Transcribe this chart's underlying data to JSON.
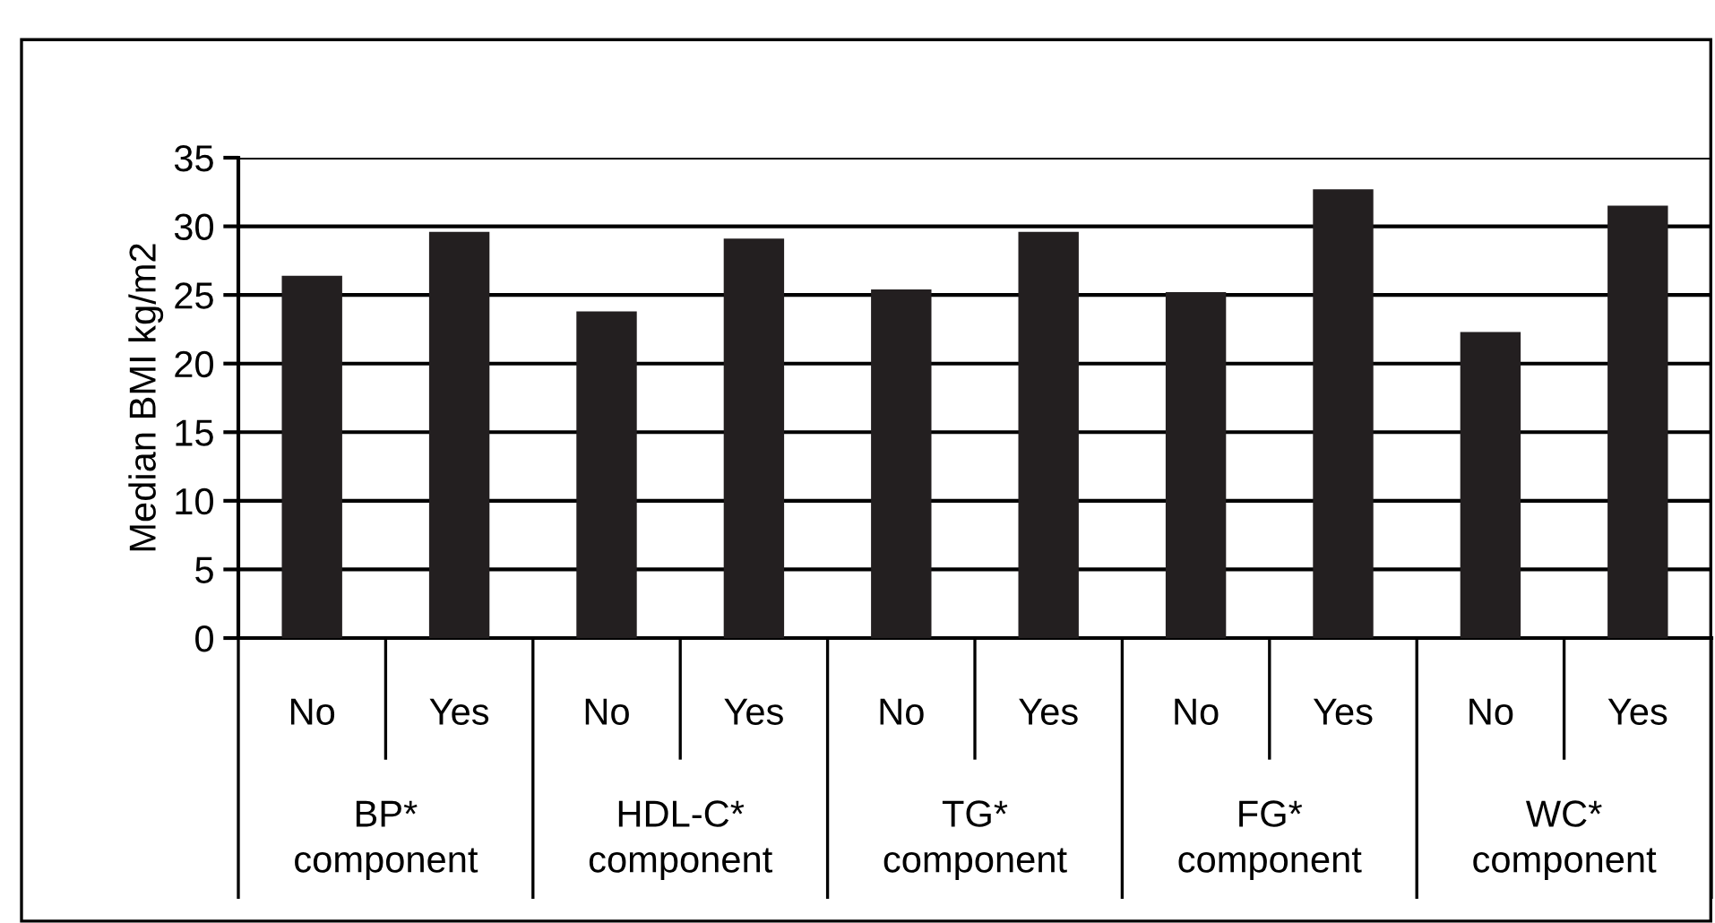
{
  "chart_data": {
    "type": "bar",
    "ylabel": "Median BMI kg/m2",
    "categories": [
      "No",
      "Yes",
      "No",
      "Yes",
      "No",
      "Yes",
      "No",
      "Yes",
      "No",
      "Yes"
    ],
    "values": [
      26.4,
      29.6,
      23.8,
      29.1,
      25.4,
      29.6,
      25.2,
      32.7,
      22.3,
      31.5
    ],
    "color": "#231f20",
    "ylim": [
      0,
      35
    ],
    "yticks": [
      0,
      5,
      10,
      15,
      20,
      25,
      30,
      35
    ],
    "grid": "y",
    "annotations": [
      "BP*\ncomponent",
      "HDL-C*\ncomponent",
      "TG*\ncomponent",
      "FG*\ncomponent",
      "WC*\ncomponent"
    ]
  }
}
